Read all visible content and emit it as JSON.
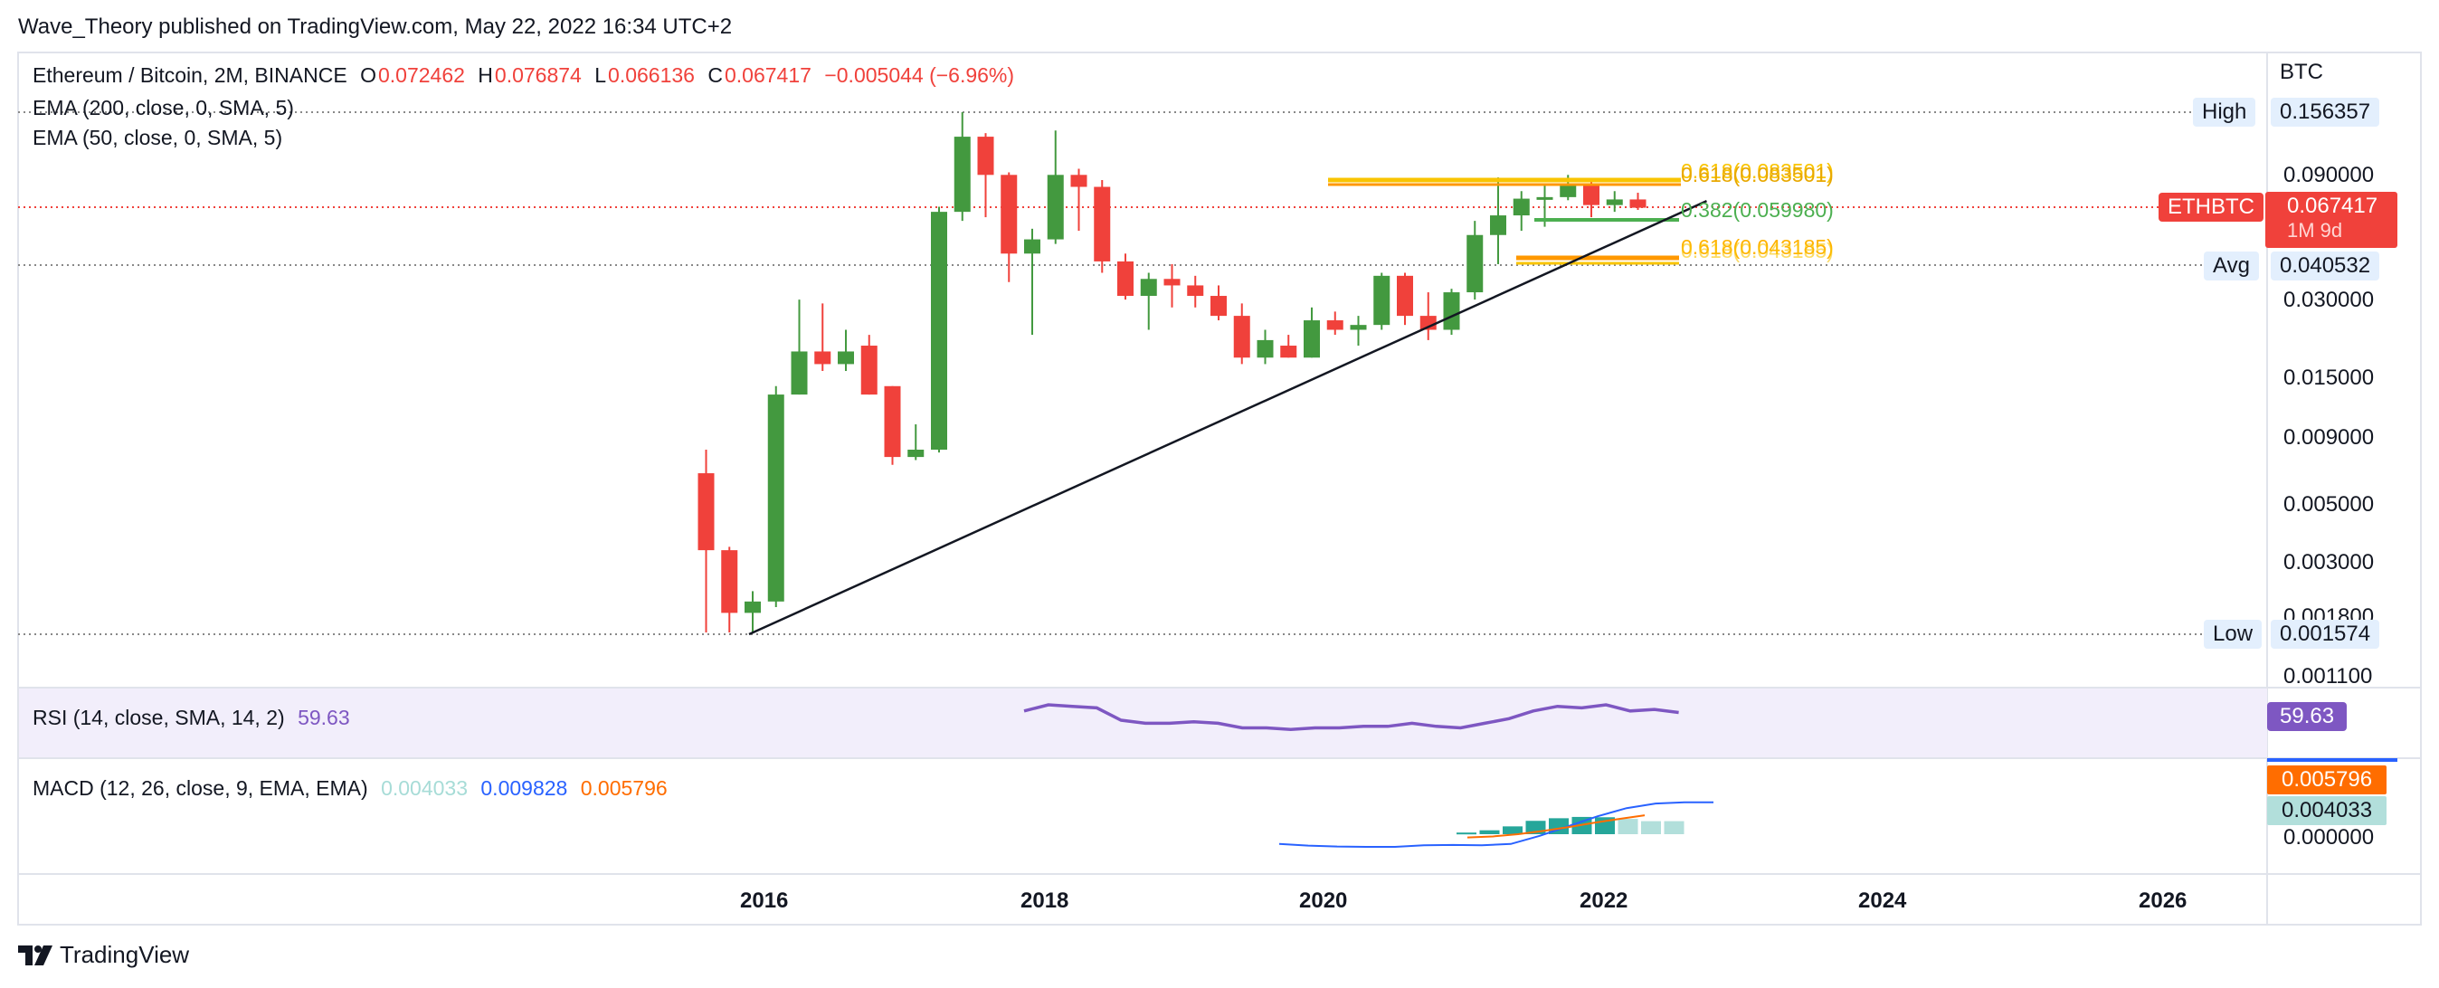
{
  "publisher_line": "Wave_Theory published on TradingView.com, May 22, 2022 16:34 UTC+2",
  "symbol_line": {
    "title": "Ethereum / Bitcoin, 2M, BINANCE",
    "o_label": "O",
    "o": "0.072462",
    "h_label": "H",
    "h": "0.076874",
    "l_label": "L",
    "l": "0.066136",
    "c_label": "C",
    "c": "0.067417",
    "change": "−0.005044 (−6.96%)"
  },
  "indicators": {
    "ema200": "EMA (200, close, 0, SMA, 5)",
    "ema50": "EMA (50, close, 0, SMA, 5)",
    "rsi_label": "RSI (14, close, SMA, 14, 2)",
    "rsi_value": "59.63",
    "macd_label": "MACD (12, 26, close, 9, EMA, EMA)",
    "macd_hist": "0.004033",
    "macd_line": "0.009828",
    "macd_signal": "0.005796"
  },
  "axis": {
    "currency": "BTC",
    "price_ticks": [
      "0.090000",
      "0.030000",
      "0.015000",
      "0.009000",
      "0.005000",
      "0.003000",
      "0.001800",
      "0.001100"
    ],
    "high_label": "High",
    "high_value": "0.156357",
    "avg_label": "Avg",
    "avg_value": "0.040532",
    "low_label": "Low",
    "low_value": "0.001574",
    "last_symbol": "ETHBTC",
    "last_value": "0.067417",
    "last_countdown": "1M 9d",
    "rsi_tag": "59.63",
    "macd_tag_signal": "0.005796",
    "macd_tag_hist": "0.004033",
    "macd_zero": "0.000000",
    "years": [
      "2016",
      "2018",
      "2020",
      "2022",
      "2024",
      "2026"
    ]
  },
  "fib_labels": {
    "upper_a": "0.618(0.083501)",
    "upper_b": "0.618(0.083501)",
    "mid": "0.382(0.059980)",
    "lower_a": "0.618(0.043185)",
    "lower_b": "0.618(0.043185)"
  },
  "footer": {
    "logo_text": "TradingView"
  },
  "colors": {
    "up": "#43993f",
    "down": "#f0413b",
    "rsi": "#7e57c2",
    "macd": "#2962ff",
    "signal": "#ff6d00",
    "hist": "#26a69a",
    "fib_gold": "#f9c400",
    "fib_orange": "#ff9800",
    "fib_green": "#4caf50"
  },
  "chart_data": {
    "type": "candlestick",
    "title": "Ethereum / Bitcoin, 2M, BINANCE",
    "ylabel": "BTC",
    "y_scale": "log",
    "x_axis_ticks": [
      "2016",
      "2018",
      "2020",
      "2022",
      "2024",
      "2026"
    ],
    "candles": [
      {
        "date": "2015-09",
        "o": 0.0065,
        "h": 0.008,
        "l": 0.0016,
        "c": 0.0033
      },
      {
        "date": "2015-11",
        "o": 0.0033,
        "h": 0.0034,
        "l": 0.0016,
        "c": 0.0019
      },
      {
        "date": "2016-01",
        "o": 0.0019,
        "h": 0.0023,
        "l": 0.0016,
        "c": 0.0021
      },
      {
        "date": "2016-03",
        "o": 0.0021,
        "h": 0.014,
        "l": 0.002,
        "c": 0.013
      },
      {
        "date": "2016-05",
        "o": 0.013,
        "h": 0.03,
        "l": 0.013,
        "c": 0.019
      },
      {
        "date": "2016-07",
        "o": 0.019,
        "h": 0.029,
        "l": 0.016,
        "c": 0.017
      },
      {
        "date": "2016-09",
        "o": 0.017,
        "h": 0.023,
        "l": 0.016,
        "c": 0.019
      },
      {
        "date": "2016-11",
        "o": 0.02,
        "h": 0.022,
        "l": 0.013,
        "c": 0.013
      },
      {
        "date": "2017-01",
        "o": 0.014,
        "h": 0.014,
        "l": 0.007,
        "c": 0.0075
      },
      {
        "date": "2017-03",
        "o": 0.0075,
        "h": 0.01,
        "l": 0.0073,
        "c": 0.008
      },
      {
        "date": "2017-05",
        "o": 0.008,
        "h": 0.068,
        "l": 0.0078,
        "c": 0.065
      },
      {
        "date": "2017-07",
        "o": 0.065,
        "h": 0.1564,
        "l": 0.06,
        "c": 0.126
      },
      {
        "date": "2017-09",
        "o": 0.126,
        "h": 0.13,
        "l": 0.062,
        "c": 0.09
      },
      {
        "date": "2017-11",
        "o": 0.09,
        "h": 0.092,
        "l": 0.035,
        "c": 0.045
      },
      {
        "date": "2018-01",
        "o": 0.045,
        "h": 0.056,
        "l": 0.022,
        "c": 0.051
      },
      {
        "date": "2018-03",
        "o": 0.051,
        "h": 0.133,
        "l": 0.049,
        "c": 0.09
      },
      {
        "date": "2018-05",
        "o": 0.09,
        "h": 0.095,
        "l": 0.055,
        "c": 0.081
      },
      {
        "date": "2018-07",
        "o": 0.081,
        "h": 0.086,
        "l": 0.038,
        "c": 0.042
      },
      {
        "date": "2018-09",
        "o": 0.042,
        "h": 0.045,
        "l": 0.03,
        "c": 0.031
      },
      {
        "date": "2018-11",
        "o": 0.031,
        "h": 0.038,
        "l": 0.023,
        "c": 0.036
      },
      {
        "date": "2019-01",
        "o": 0.036,
        "h": 0.041,
        "l": 0.028,
        "c": 0.034
      },
      {
        "date": "2019-03",
        "o": 0.034,
        "h": 0.037,
        "l": 0.028,
        "c": 0.031
      },
      {
        "date": "2019-05",
        "o": 0.031,
        "h": 0.034,
        "l": 0.025,
        "c": 0.026
      },
      {
        "date": "2019-07",
        "o": 0.026,
        "h": 0.029,
        "l": 0.017,
        "c": 0.018
      },
      {
        "date": "2019-09",
        "o": 0.018,
        "h": 0.023,
        "l": 0.017,
        "c": 0.021
      },
      {
        "date": "2019-11",
        "o": 0.02,
        "h": 0.022,
        "l": 0.018,
        "c": 0.018
      },
      {
        "date": "2020-01",
        "o": 0.018,
        "h": 0.028,
        "l": 0.018,
        "c": 0.025
      },
      {
        "date": "2020-03",
        "o": 0.025,
        "h": 0.027,
        "l": 0.022,
        "c": 0.023
      },
      {
        "date": "2020-05",
        "o": 0.023,
        "h": 0.026,
        "l": 0.02,
        "c": 0.024
      },
      {
        "date": "2020-07",
        "o": 0.024,
        "h": 0.038,
        "l": 0.023,
        "c": 0.037
      },
      {
        "date": "2020-09",
        "o": 0.037,
        "h": 0.038,
        "l": 0.024,
        "c": 0.026
      },
      {
        "date": "2020-11",
        "o": 0.026,
        "h": 0.032,
        "l": 0.021,
        "c": 0.023
      },
      {
        "date": "2021-01",
        "o": 0.023,
        "h": 0.033,
        "l": 0.022,
        "c": 0.032
      },
      {
        "date": "2021-03",
        "o": 0.032,
        "h": 0.06,
        "l": 0.03,
        "c": 0.053
      },
      {
        "date": "2021-05",
        "o": 0.053,
        "h": 0.088,
        "l": 0.041,
        "c": 0.063
      },
      {
        "date": "2021-07",
        "o": 0.063,
        "h": 0.078,
        "l": 0.055,
        "c": 0.073
      },
      {
        "date": "2021-09",
        "o": 0.073,
        "h": 0.083,
        "l": 0.057,
        "c": 0.074
      },
      {
        "date": "2021-11",
        "o": 0.074,
        "h": 0.09,
        "l": 0.072,
        "c": 0.082
      },
      {
        "date": "2022-01",
        "o": 0.082,
        "h": 0.086,
        "l": 0.062,
        "c": 0.069
      },
      {
        "date": "2022-03",
        "o": 0.069,
        "h": 0.078,
        "l": 0.065,
        "c": 0.0725
      },
      {
        "date": "2022-05",
        "o": 0.0725,
        "h": 0.0769,
        "l": 0.0661,
        "c": 0.0674
      }
    ],
    "levels": {
      "high": 0.156357,
      "avg": 0.040532,
      "low": 0.001574,
      "last": 0.067417
    },
    "fib_levels": [
      {
        "label": "0.618(0.083501)",
        "value": 0.083501
      },
      {
        "label": "0.382(0.059980)",
        "value": 0.05998
      },
      {
        "label": "0.618(0.043185)",
        "value": 0.043185
      }
    ],
    "trendline": [
      {
        "date": "2016-01",
        "value": 0.001574
      },
      {
        "date": "2022-05",
        "value": 0.052
      }
    ],
    "rsi": [
      66,
      70,
      69,
      68,
      60,
      58,
      58,
      59,
      58,
      55,
      55,
      54,
      55,
      55,
      56,
      56,
      58,
      56,
      55,
      58,
      61,
      66,
      69,
      68,
      70,
      66,
      67,
      65
    ],
    "macd": {
      "macd_line": [
        -0.003,
        -0.0035,
        -0.0038,
        -0.0039,
        -0.0039,
        -0.0034,
        -0.0033,
        -0.0034,
        -0.003,
        -0.0005,
        0.0025,
        0.0055,
        0.008,
        0.0094,
        0.0098,
        0.0098
      ],
      "signal_line": [
        -0.001,
        -0.0007,
        0.0,
        0.001,
        0.0022,
        0.0035,
        0.0047,
        0.0058
      ],
      "histogram": [
        0.0005,
        0.0012,
        0.0024,
        0.0041,
        0.0049,
        0.0053,
        0.0052,
        0.0047,
        0.004,
        0.004
      ]
    }
  }
}
